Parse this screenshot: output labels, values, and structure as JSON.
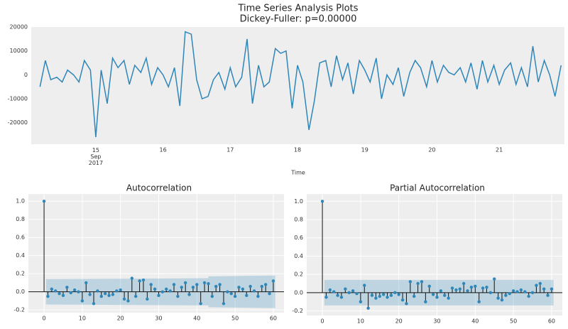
{
  "chart_data": [
    {
      "type": "line",
      "title": "Time Series Analysis Plots",
      "subtitle": "Dickey-Fuller: p=0.00000",
      "x_label": "Time",
      "color": "#2f86b8",
      "grid": false,
      "xlim": [
        14.04,
        21.97
      ],
      "xticks": [
        {
          "value": 15,
          "label": "15\nSep\n2017"
        },
        16,
        17,
        18,
        19,
        20,
        21
      ],
      "ylim": [
        -29000,
        20000
      ],
      "yticks": [
        -20000,
        -10000,
        0,
        10000,
        20000
      ],
      "x": [
        14.17,
        14.25,
        14.33,
        14.42,
        14.5,
        14.58,
        14.67,
        14.75,
        14.83,
        14.92,
        15,
        15.08,
        15.17,
        15.25,
        15.33,
        15.42,
        15.5,
        15.58,
        15.67,
        15.75,
        15.83,
        15.92,
        16,
        16.08,
        16.17,
        16.25,
        16.33,
        16.42,
        16.5,
        16.58,
        16.67,
        16.75,
        16.83,
        16.92,
        17,
        17.08,
        17.17,
        17.25,
        17.33,
        17.42,
        17.5,
        17.58,
        17.67,
        17.75,
        17.83,
        17.92,
        18,
        18.08,
        18.17,
        18.25,
        18.33,
        18.42,
        18.5,
        18.58,
        18.67,
        18.75,
        18.83,
        18.92,
        19,
        19.08,
        19.17,
        19.25,
        19.33,
        19.42,
        19.5,
        19.58,
        19.67,
        19.75,
        19.83,
        19.92,
        20,
        20.08,
        20.17,
        20.25,
        20.33,
        20.42,
        20.5,
        20.58,
        20.67,
        20.75,
        20.83,
        20.92,
        21,
        21.08,
        21.17,
        21.25,
        21.33,
        21.42,
        21.5,
        21.58,
        21.67,
        21.75,
        21.83,
        21.92
      ],
      "values": [
        -5000,
        6000,
        -2000,
        -1000,
        -3000,
        2000,
        0,
        -3000,
        6000,
        2000,
        -26000,
        2000,
        -12000,
        7000,
        3000,
        6000,
        -4000,
        4000,
        1000,
        7000,
        -4000,
        3000,
        0,
        -5000,
        3000,
        -13000,
        18000,
        17000,
        -2000,
        -10000,
        -9000,
        -2000,
        1000,
        -6000,
        3000,
        -5000,
        -1000,
        15000,
        -12000,
        4000,
        -5000,
        -3000,
        11000,
        9000,
        10000,
        -14000,
        4000,
        -3000,
        -23000,
        -11000,
        5000,
        6000,
        -5000,
        8000,
        -2000,
        5000,
        -8000,
        6000,
        2000,
        -3000,
        7000,
        -10000,
        0,
        -4000,
        3000,
        -9000,
        1000,
        6000,
        3000,
        -5000,
        6000,
        -3000,
        4000,
        1000,
        0,
        3000,
        -3000,
        5000,
        -6000,
        6000,
        -3000,
        4000,
        -4000,
        2000,
        5000,
        -4000,
        3000,
        -5000,
        12000,
        -3000,
        6000,
        0,
        -9000,
        4000
      ]
    },
    {
      "type": "stem",
      "title": "Autocorrelation",
      "color": "#2f86b8",
      "stem_color": "#111111",
      "grid": true,
      "xlim": [
        -4.1,
        62.8
      ],
      "xticks": [
        0,
        10,
        20,
        30,
        40,
        50,
        60
      ],
      "ylim": [
        -0.23,
        1.08
      ],
      "yticks": [
        -0.2,
        {
          "value": 0,
          "label": "0.0"
        },
        0.2,
        0.4,
        0.6,
        0.8,
        {
          "value": 1,
          "label": "1.0"
        }
      ],
      "band": {
        "x": [
          0.5,
          43,
          43,
          60.5
        ],
        "upper": [
          0.14,
          0.15,
          0.17,
          0.18
        ]
      },
      "x": [
        0,
        1,
        2,
        3,
        4,
        5,
        6,
        7,
        8,
        9,
        10,
        11,
        12,
        13,
        14,
        15,
        16,
        17,
        18,
        19,
        20,
        21,
        22,
        23,
        24,
        25,
        26,
        27,
        28,
        29,
        30,
        31,
        32,
        33,
        34,
        35,
        36,
        37,
        38,
        39,
        40,
        41,
        42,
        43,
        44,
        45,
        46,
        47,
        48,
        49,
        50,
        51,
        52,
        53,
        54,
        55,
        56,
        57,
        58,
        59,
        60
      ],
      "values": [
        1,
        -0.05,
        0.03,
        0.01,
        -0.02,
        -0.04,
        0.05,
        -0.01,
        0.02,
        0.0,
        -0.1,
        0.1,
        -0.03,
        -0.13,
        0.01,
        -0.05,
        -0.02,
        -0.04,
        -0.03,
        0.01,
        0.02,
        -0.08,
        -0.1,
        0.15,
        -0.05,
        0.12,
        0.13,
        -0.08,
        0.08,
        0.03,
        -0.04,
        0.0,
        0.03,
        0.01,
        0.08,
        -0.05,
        0.05,
        0.1,
        -0.03,
        0.05,
        0.08,
        -0.13,
        0.1,
        0.09,
        -0.05,
        0.06,
        0.08,
        -0.13,
        0.0,
        -0.02,
        -0.05,
        0.05,
        0.03,
        -0.04,
        0.06,
        0.01,
        -0.05,
        0.06,
        0.08,
        -0.02,
        0.12
      ]
    },
    {
      "type": "stem",
      "title": "Partial Autocorrelation",
      "color": "#2f86b8",
      "stem_color": "#111111",
      "grid": true,
      "xlim": [
        -4.1,
        62.8
      ],
      "xticks": [
        0,
        10,
        20,
        30,
        40,
        50,
        60
      ],
      "ylim": [
        -0.25,
        1.08
      ],
      "yticks": [
        -0.2,
        {
          "value": 0,
          "label": "0.0"
        },
        0.2,
        0.4,
        0.6,
        0.8,
        {
          "value": 1,
          "label": "1.0"
        }
      ],
      "band": {
        "x": [
          0.5,
          60.5
        ],
        "upper": [
          0.14,
          0.14
        ]
      },
      "x": [
        0,
        1,
        2,
        3,
        4,
        5,
        6,
        7,
        8,
        9,
        10,
        11,
        12,
        13,
        14,
        15,
        16,
        17,
        18,
        19,
        20,
        21,
        22,
        23,
        24,
        25,
        26,
        27,
        28,
        29,
        30,
        31,
        32,
        33,
        34,
        35,
        36,
        37,
        38,
        39,
        40,
        41,
        42,
        43,
        44,
        45,
        46,
        47,
        48,
        49,
        50,
        51,
        52,
        53,
        54,
        55,
        56,
        57,
        58,
        59,
        60
      ],
      "values": [
        1,
        -0.05,
        0.03,
        0.01,
        -0.03,
        -0.05,
        0.04,
        0.0,
        0.02,
        -0.01,
        -0.1,
        0.08,
        -0.17,
        -0.03,
        -0.06,
        -0.04,
        -0.02,
        -0.05,
        -0.03,
        0.0,
        -0.02,
        -0.08,
        -0.12,
        0.12,
        -0.04,
        0.1,
        0.12,
        -0.1,
        0.07,
        -0.02,
        -0.05,
        0.02,
        -0.03,
        -0.06,
        0.05,
        0.03,
        0.04,
        0.1,
        0.02,
        0.06,
        0.07,
        -0.1,
        0.05,
        0.06,
        0.0,
        0.15,
        -0.06,
        -0.08,
        -0.03,
        -0.01,
        0.02,
        0.01,
        0.03,
        0.01,
        -0.04,
        0.0,
        0.08,
        0.1,
        0.04,
        -0.03,
        0.04
      ]
    }
  ]
}
